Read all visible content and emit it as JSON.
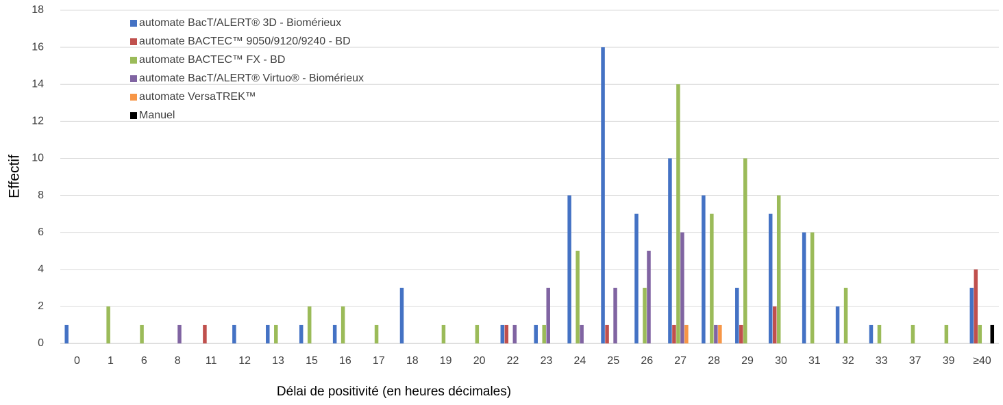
{
  "chart_data": {
    "type": "bar",
    "xlabel": "Délai de positivité (en heures décimales)",
    "ylabel": "Effectif",
    "categories": [
      "0",
      "1",
      "6",
      "8",
      "11",
      "12",
      "13",
      "15",
      "16",
      "17",
      "18",
      "19",
      "20",
      "22",
      "23",
      "24",
      "25",
      "26",
      "27",
      "28",
      "29",
      "30",
      "31",
      "32",
      "33",
      "37",
      "39",
      "≥40"
    ],
    "series": [
      {
        "name": "automate BacT/ALERT® 3D  - Biomérieux",
        "color": "#4472c4",
        "values": [
          1,
          0,
          0,
          0,
          0,
          1,
          1,
          1,
          1,
          0,
          3,
          0,
          0,
          1,
          1,
          8,
          16,
          7,
          10,
          8,
          3,
          7,
          6,
          2,
          1,
          0,
          0,
          3
        ]
      },
      {
        "name": "automate BACTEC™ 9050/9120/9240 - BD",
        "color": "#c0504d",
        "values": [
          0,
          0,
          0,
          0,
          1,
          0,
          0,
          0,
          0,
          0,
          0,
          0,
          0,
          1,
          0,
          0,
          1,
          0,
          1,
          0,
          1,
          2,
          0,
          0,
          0,
          0,
          0,
          4
        ]
      },
      {
        "name": "automate BACTEC™ FX - BD",
        "color": "#9bbb59",
        "values": [
          0,
          2,
          1,
          0,
          0,
          0,
          1,
          2,
          2,
          1,
          0,
          1,
          1,
          0,
          1,
          5,
          0,
          3,
          14,
          7,
          10,
          8,
          6,
          3,
          1,
          1,
          1,
          1
        ]
      },
      {
        "name": "automate BacT/ALERT® Virtuo®  - Biomérieux",
        "color": "#8064a2",
        "values": [
          0,
          0,
          0,
          1,
          0,
          0,
          0,
          0,
          0,
          0,
          0,
          0,
          0,
          1,
          3,
          1,
          3,
          5,
          6,
          1,
          0,
          0,
          0,
          0,
          0,
          0,
          0,
          0
        ]
      },
      {
        "name": "automate VersaTREK™",
        "color": "#f79646",
        "values": [
          0,
          0,
          0,
          0,
          0,
          0,
          0,
          0,
          0,
          0,
          0,
          0,
          0,
          0,
          0,
          0,
          0,
          0,
          1,
          1,
          0,
          0,
          0,
          0,
          0,
          0,
          0,
          0
        ]
      },
      {
        "name": "Manuel",
        "color": "#000000",
        "values": [
          0,
          0,
          0,
          0,
          0,
          0,
          0,
          0,
          0,
          0,
          0,
          0,
          0,
          0,
          0,
          0,
          0,
          0,
          0,
          0,
          0,
          0,
          0,
          0,
          0,
          0,
          0,
          1
        ]
      }
    ],
    "ylim": [
      0,
      18
    ],
    "yticks": [
      0,
      2,
      4,
      6,
      8,
      10,
      12,
      14,
      16,
      18
    ],
    "grid": true,
    "legend": "top-left"
  }
}
